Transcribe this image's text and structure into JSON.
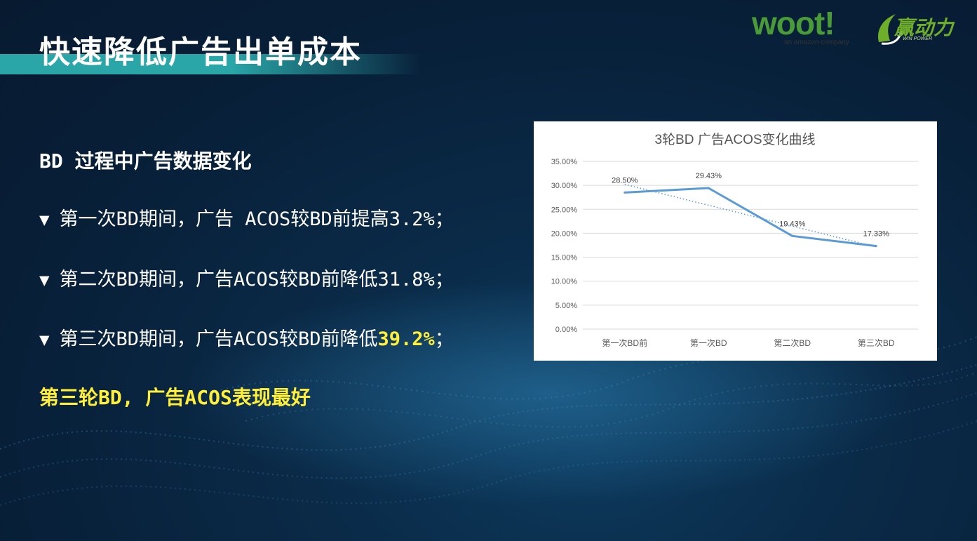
{
  "page": {
    "title": "快速降低广告出单成本"
  },
  "logos": {
    "woot": {
      "text": "woot!",
      "sub": "an amazon company"
    },
    "yd": {
      "text": "赢动力",
      "sub": "WIN POWER"
    }
  },
  "content": {
    "heading": "BD 过程中广告数据变化",
    "bullet_mark": "▼",
    "bullets": [
      {
        "text": "第一次BD期间，广告 ACOS较BD前提高3.2%；",
        "highlight": "",
        "suffix": ""
      },
      {
        "text": "第二次BD期间，广告ACOS较BD前降低31.8%；",
        "highlight": "",
        "suffix": ""
      },
      {
        "text": "第三次BD期间，广告ACOS较BD前降低",
        "highlight": "39.2%",
        "suffix": "；"
      }
    ],
    "conclusion": "第三轮BD, 广告ACOS表现最好"
  },
  "colors": {
    "accent_teal": "#2aa6a8",
    "highlight_yellow": "#ffef3a",
    "series_line": "#5b9bd5",
    "trend_line": "#5b9bd5"
  },
  "chart_data": {
    "type": "line",
    "title": "3轮BD 广告ACOS变化曲线",
    "categories": [
      "第一次BD前",
      "第一次BD",
      "第二次BD",
      "第三次BD"
    ],
    "values": [
      28.5,
      29.43,
      19.43,
      17.33
    ],
    "data_labels": [
      "28.50%",
      "29.43%",
      "19.43%",
      "17.33%"
    ],
    "trendline": "linear, dotted",
    "ylim": [
      0,
      35
    ],
    "yticks": [
      "0.00%",
      "5.00%",
      "10.00%",
      "15.00%",
      "20.00%",
      "25.00%",
      "30.00%",
      "35.00%"
    ],
    "ytick_values": [
      0,
      5,
      10,
      15,
      20,
      25,
      30,
      35
    ],
    "grid": true,
    "legend": "none"
  }
}
